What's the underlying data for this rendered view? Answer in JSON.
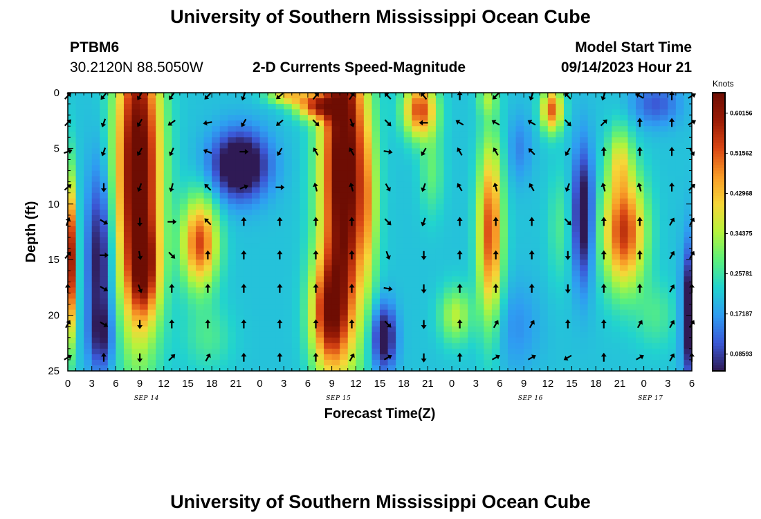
{
  "header": {
    "title": "University of Southern Mississippi Ocean Cube",
    "station": "PTBM6",
    "coords": "30.2120N  88.5050W",
    "subtitle": "2-D Currents Speed-Magnitude",
    "model_label": "Model Start Time",
    "model_time": "09/14/2023 Hour 21"
  },
  "footer": {
    "title": "University of Southern Mississippi Ocean Cube"
  },
  "colors": {
    "palette": [
      "#2f1a55",
      "#3b58d6",
      "#2f9cf2",
      "#21d3cf",
      "#5cf07a",
      "#b5f33c",
      "#f6d638",
      "#f89a27",
      "#d94614",
      "#9a1b05",
      "#6e0d03"
    ]
  },
  "chart_data": {
    "type": "heatmap",
    "title": "2-D Currents Speed-Magnitude",
    "xlabel": "Forecast Time(Z)",
    "ylabel": "Depth (ft)",
    "x_ticks": [
      "0",
      "3",
      "6",
      "9",
      "12",
      "15",
      "18",
      "21",
      "0",
      "3",
      "6",
      "9",
      "12",
      "15",
      "18",
      "21",
      "0",
      "3",
      "6",
      "9",
      "12",
      "15",
      "18",
      "21",
      "0",
      "3",
      "6"
    ],
    "x_hours": [
      0,
      3,
      6,
      9,
      12,
      15,
      18,
      21,
      24,
      27,
      30,
      33,
      36,
      39,
      42,
      45,
      48,
      51,
      54,
      57,
      60,
      63,
      66,
      69,
      72,
      75,
      78
    ],
    "x_range_hours": [
      0,
      78
    ],
    "day_labels": [
      {
        "label": "SEP 14",
        "hour": 12
      },
      {
        "label": "SEP 15",
        "hour": 36
      },
      {
        "label": "SEP 16",
        "hour": 60
      },
      {
        "label": "SEP 17",
        "hour": 75
      }
    ],
    "y_ticks": [
      "0",
      "5",
      "10",
      "15",
      "20",
      "25"
    ],
    "y_values": [
      0,
      5,
      10,
      15,
      20,
      25
    ],
    "y_range_ft": [
      0,
      25
    ],
    "colorbar": {
      "label": "Knots",
      "range": [
        0.05,
        0.645
      ],
      "ticks": [
        "0.60156",
        "0.51562",
        "0.42968",
        "0.34375",
        "0.25781",
        "0.17187",
        "0.08593"
      ],
      "tick_values": [
        0.60156,
        0.51562,
        0.42968,
        0.34375,
        0.25781,
        0.17187,
        0.08593
      ]
    },
    "speed_features": [
      {
        "hour": 0.2,
        "depth": 15,
        "speed": 0.42,
        "hw": 0.8,
        "hd": 7
      },
      {
        "hour": 4,
        "depth": 15,
        "speed": -0.18,
        "hw": 1.6,
        "hd": 8
      },
      {
        "hour": 4.3,
        "depth": 22,
        "speed": -0.1,
        "hw": 1.6,
        "hd": 3
      },
      {
        "hour": 8.8,
        "depth": 7,
        "speed": 0.48,
        "hw": 2.8,
        "hd": 14
      },
      {
        "hour": 9.6,
        "depth": 16,
        "speed": 0.2,
        "hw": 1.8,
        "hd": 4
      },
      {
        "hour": 16.5,
        "depth": 13.5,
        "speed": 0.32,
        "hw": 2.2,
        "hd": 4
      },
      {
        "hour": 17.5,
        "depth": 22,
        "speed": 0.06,
        "hw": 3,
        "hd": 3
      },
      {
        "hour": 21.5,
        "depth": 6.5,
        "speed": -0.25,
        "hw": 3.5,
        "hd": 3
      },
      {
        "hour": 27.5,
        "depth": 0.3,
        "speed": 0.2,
        "hw": 2.5,
        "hd": 0.8
      },
      {
        "hour": 31,
        "depth": 1.2,
        "speed": 0.28,
        "hw": 2.5,
        "hd": 1.2
      },
      {
        "hour": 34.5,
        "depth": 7,
        "speed": 0.5,
        "hw": 2.8,
        "hd": 15
      },
      {
        "hour": 32.5,
        "depth": 20,
        "speed": 0.3,
        "hw": 2.2,
        "hd": 5
      },
      {
        "hour": 37.6,
        "depth": 10,
        "speed": 0.12,
        "hw": 1.1,
        "hd": 7
      },
      {
        "hour": 39.5,
        "depth": 22,
        "speed": -0.2,
        "hw": 1.5,
        "hd": 3
      },
      {
        "hour": 44,
        "depth": 1.5,
        "speed": 0.32,
        "hw": 2,
        "hd": 2.5
      },
      {
        "hour": 45.5,
        "depth": 7,
        "speed": 0.08,
        "hw": 1.5,
        "hd": 4
      },
      {
        "hour": 48.5,
        "depth": 20,
        "speed": 0.14,
        "hw": 2,
        "hd": 2.5
      },
      {
        "hour": 52.8,
        "depth": 12.5,
        "speed": 0.32,
        "hw": 1.5,
        "hd": 8
      },
      {
        "hour": 52.5,
        "depth": 0.5,
        "speed": 0.1,
        "hw": 1.2,
        "hd": 1.5
      },
      {
        "hour": 56.5,
        "depth": 5,
        "speed": -0.06,
        "hw": 1.5,
        "hd": 3
      },
      {
        "hour": 56,
        "depth": 21,
        "speed": -0.05,
        "hw": 3,
        "hd": 4
      },
      {
        "hour": 60.5,
        "depth": 1.5,
        "speed": 0.3,
        "hw": 1.3,
        "hd": 2
      },
      {
        "hour": 61.5,
        "depth": 12,
        "speed": 0.06,
        "hw": 1.5,
        "hd": 5
      },
      {
        "hour": 64.4,
        "depth": 11,
        "speed": -0.2,
        "hw": 1.3,
        "hd": 6
      },
      {
        "hour": 69.5,
        "depth": 12.5,
        "speed": 0.34,
        "hw": 2.6,
        "hd": 5
      },
      {
        "hour": 69,
        "depth": 6,
        "speed": 0.14,
        "hw": 1.5,
        "hd": 3
      },
      {
        "hour": 73.5,
        "depth": 1,
        "speed": -0.1,
        "hw": 3,
        "hd": 2
      },
      {
        "hour": 77.8,
        "depth": 20,
        "speed": -0.22,
        "hw": 1,
        "hd": 6
      },
      {
        "hour": 73.5,
        "depth": 20,
        "speed": 0.06,
        "hw": 2.5,
        "hd": 3
      }
    ],
    "vector_hours": [
      0,
      4.5,
      9,
      13,
      17.5,
      22,
      26.5,
      31,
      35.5,
      40,
      44.5,
      49,
      53.5,
      58,
      62.5,
      67,
      71.5,
      75.5,
      78
    ],
    "vector_depths": [
      0.3,
      2.7,
      5.3,
      8.5,
      11.6,
      14.6,
      17.6,
      20.8,
      23.8
    ],
    "vector_angles_deg": [
      [
        45,
        220,
        210,
        215,
        225,
        200,
        230,
        40,
        35,
        315,
        320,
        0,
        225,
        200,
        315,
        200,
        300,
        0,
        60
      ],
      [
        45,
        200,
        210,
        235,
        260,
        210,
        230,
        135,
        160,
        135,
        270,
        300,
        300,
        300,
        135,
        45,
        0,
        0,
        60
      ],
      [
        70,
        200,
        210,
        205,
        290,
        90,
        210,
        330,
        330,
        100,
        210,
        330,
        330,
        315,
        210,
        0,
        0,
        0,
        150
      ],
      [
        50,
        180,
        200,
        195,
        315,
        70,
        90,
        345,
        345,
        150,
        200,
        330,
        345,
        330,
        200,
        345,
        345,
        0,
        45
      ],
      [
        20,
        120,
        180,
        90,
        315,
        0,
        0,
        0,
        0,
        135,
        200,
        0,
        0,
        0,
        135,
        0,
        0,
        30,
        30
      ],
      [
        40,
        90,
        170,
        135,
        0,
        0,
        0,
        0,
        0,
        160,
        180,
        0,
        0,
        0,
        180,
        0,
        0,
        30,
        30
      ],
      [
        0,
        120,
        160,
        0,
        0,
        0,
        0,
        0,
        0,
        100,
        180,
        0,
        0,
        0,
        180,
        0,
        0,
        30,
        0
      ],
      [
        30,
        120,
        180,
        0,
        0,
        0,
        0,
        0,
        0,
        135,
        180,
        0,
        30,
        30,
        0,
        0,
        30,
        30,
        30
      ],
      [
        60,
        0,
        180,
        45,
        30,
        0,
        0,
        0,
        30,
        60,
        180,
        0,
        60,
        60,
        240,
        0,
        60,
        30,
        0
      ]
    ]
  }
}
